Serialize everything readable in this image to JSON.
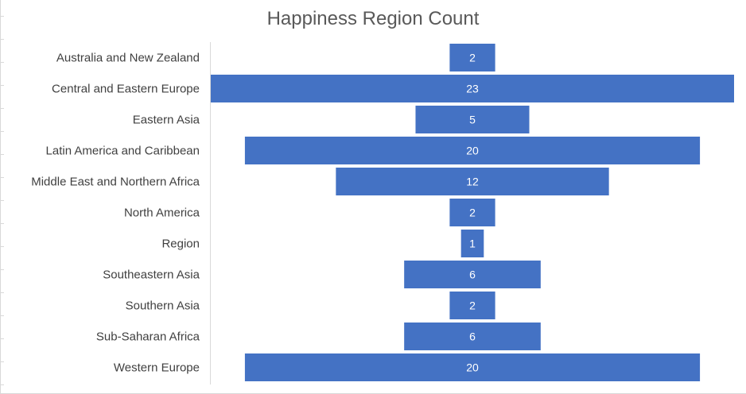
{
  "chart_data": {
    "type": "bar",
    "orientation": "horizontal",
    "layout": "funnel",
    "title": "Happiness Region Count",
    "xlabel": "",
    "ylabel": "",
    "categories": [
      "Australia and New Zealand",
      "Central and Eastern Europe",
      "Eastern Asia",
      "Latin America and Caribbean",
      "Middle East and Northern Africa",
      "North America",
      "Region",
      "Southeastern Asia",
      "Southern Asia",
      "Sub-Saharan Africa",
      "Western Europe"
    ],
    "values": [
      2,
      23,
      5,
      20,
      12,
      2,
      1,
      6,
      2,
      6,
      20
    ],
    "data_labels": true,
    "grid": false,
    "legend": "none",
    "bar_color": "#4472C4",
    "label_color": "#ffffff",
    "axis_color": "#d9d9d9"
  }
}
